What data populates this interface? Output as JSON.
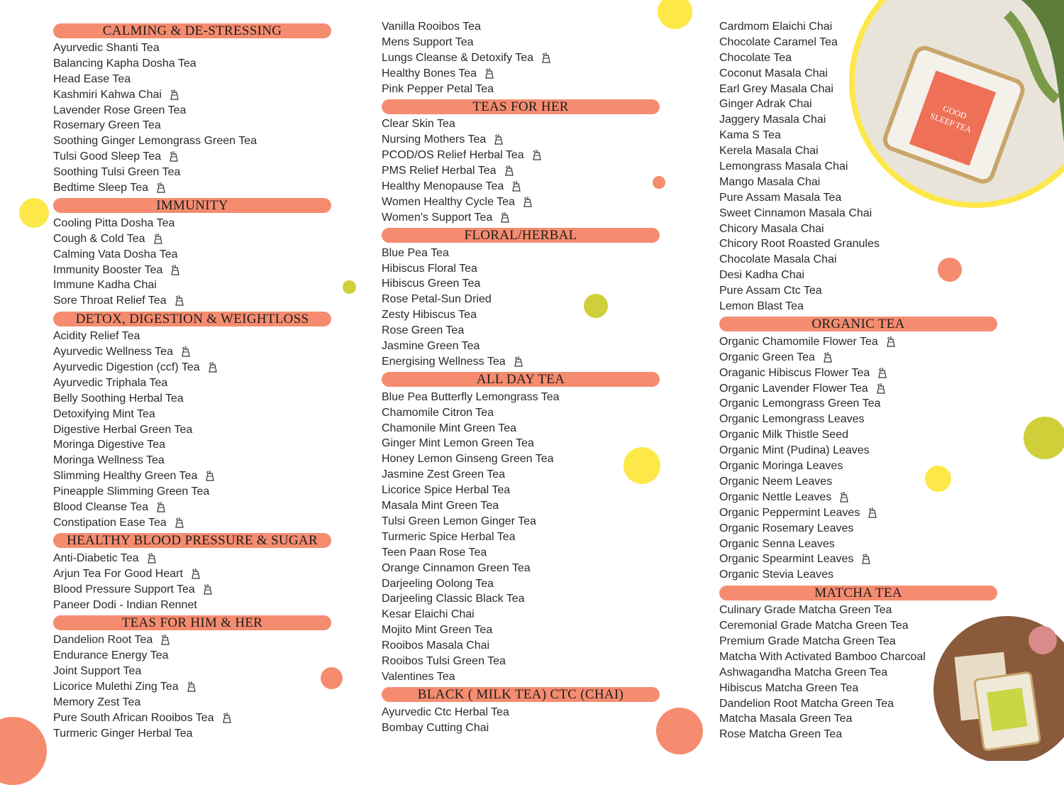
{
  "columns": [
    {
      "sections": [
        {
          "title": "CALMING & DE-STRESSING",
          "items": [
            {
              "text": "Ayurvedic Shanti Tea"
            },
            {
              "text": "Balancing Kapha Dosha Tea"
            },
            {
              "text": "Head Ease Tea"
            },
            {
              "text": "Kashmiri Kahwa Chai",
              "bag": true
            },
            {
              "text": "Lavender Rose Green Tea"
            },
            {
              "text": "Rosemary Green Tea"
            },
            {
              "text": "Soothing Ginger Lemongrass Green Tea"
            },
            {
              "text": "Tulsi Good Sleep Tea",
              "bag": true
            },
            {
              "text": "Soothing Tulsi Green Tea"
            },
            {
              "text": "Bedtime Sleep Tea",
              "bag": true
            }
          ]
        },
        {
          "title": "IMMUNITY",
          "items": [
            {
              "text": "Cooling Pitta Dosha Tea"
            },
            {
              "text": "Cough & Cold Tea",
              "bag": true
            },
            {
              "text": "Calming Vata Dosha Tea"
            },
            {
              "text": "Immunity Booster Tea",
              "bag": true
            },
            {
              "text": "Immune Kadha Chai"
            },
            {
              "text": "Sore Throat Relief Tea",
              "bag": true
            }
          ]
        },
        {
          "title": "DETOX, DIGESTION & WEIGHTLOSS",
          "items": [
            {
              "text": "Acidity Relief Tea"
            },
            {
              "text": "Ayurvedic Wellness Tea",
              "bag": true
            },
            {
              "text": "Ayurvedic Digestion (ccf) Tea",
              "bag": true
            },
            {
              "text": "Ayurvedic Triphala Tea"
            },
            {
              "text": "Belly Soothing Herbal Tea"
            },
            {
              "text": "Detoxifying Mint Tea"
            },
            {
              "text": "Digestive Herbal Green Tea"
            },
            {
              "text": "Moringa Digestive Tea"
            },
            {
              "text": "Moringa Wellness Tea"
            },
            {
              "text": "Slimming Healthy Green Tea",
              "bag": true
            },
            {
              "text": "Pineapple Slimming Green Tea"
            },
            {
              "text": "Blood Cleanse Tea",
              "bag": true
            },
            {
              "text": "Constipation Ease Tea",
              "bag": true
            }
          ]
        },
        {
          "title": "HEALTHY BLOOD PRESSURE & SUGAR",
          "items": [
            {
              "text": "Anti-Diabetic Tea",
              "bag": true
            },
            {
              "text": "Arjun Tea For Good Heart",
              "bag": true
            },
            {
              "text": "Blood Pressure Support Tea",
              "bag": true
            },
            {
              "text": "Paneer Dodi - Indian Rennet"
            }
          ]
        },
        {
          "title": "TEAS FOR HIM & HER",
          "items": [
            {
              "text": "Dandelion Root Tea",
              "bag": true
            },
            {
              "text": "Endurance Energy Tea"
            },
            {
              "text": "Joint Support Tea"
            },
            {
              "text": "Licorice Mulethi Zing Tea",
              "bag": true
            },
            {
              "text": "Memory Zest Tea"
            },
            {
              "text": "Pure South African Rooibos Tea",
              "bag": true
            },
            {
              "text": "Turmeric Ginger Herbal Tea"
            }
          ]
        }
      ]
    },
    {
      "sections": [
        {
          "items": [
            {
              "text": "Vanilla Rooibos Tea"
            },
            {
              "text": "Mens Support Tea"
            },
            {
              "text": "Lungs Cleanse & Detoxify Tea",
              "bag": true
            },
            {
              "text": "Healthy Bones Tea",
              "bag": true
            },
            {
              "text": "Pink Pepper Petal Tea"
            }
          ]
        },
        {
          "title": "TEAS FOR HER",
          "items": [
            {
              "text": "Clear Skin Tea"
            },
            {
              "text": "Nursing Mothers Tea",
              "bag": true
            },
            {
              "text": "PCOD/OS Relief Herbal Tea",
              "bag": true
            },
            {
              "text": "PMS Relief Herbal Tea",
              "bag": true
            },
            {
              "text": "Healthy Menopause Tea",
              "bag": true
            },
            {
              "text": "Women Healthy Cycle Tea",
              "bag": true
            },
            {
              "text": "Women's Support Tea",
              "bag": true
            }
          ]
        },
        {
          "title": "FLORAL/HERBAL",
          "items": [
            {
              "text": "Blue Pea Tea"
            },
            {
              "text": "Hibiscus Floral Tea"
            },
            {
              "text": "Hibiscus Green Tea"
            },
            {
              "text": "Rose Petal-Sun Dried"
            },
            {
              "text": "Zesty Hibiscus Tea"
            },
            {
              "text": "Rose Green Tea"
            },
            {
              "text": "Jasmine Green Tea"
            },
            {
              "text": "Energising Wellness Tea",
              "bag": true
            }
          ]
        },
        {
          "title": "ALL DAY TEA",
          "items": [
            {
              "text": "Blue Pea Butterfly Lemongrass Tea"
            },
            {
              "text": "Chamomile Citron Tea"
            },
            {
              "text": "Chamonile Mint Green Tea"
            },
            {
              "text": "Ginger Mint Lemon Green Tea"
            },
            {
              "text": "Honey Lemon Ginseng Green Tea"
            },
            {
              "text": "Jasmine Zest Green Tea"
            },
            {
              "text": "Licorice Spice Herbal Tea"
            },
            {
              "text": "Masala Mint Green Tea"
            },
            {
              "text": "Tulsi Green Lemon Ginger Tea"
            },
            {
              "text": "Turmeric Spice Herbal Tea"
            },
            {
              "text": "Teen Paan Rose Tea"
            },
            {
              "text": "Orange Cinnamon Green Tea"
            },
            {
              "text": "Darjeeling Oolong Tea"
            },
            {
              "text": "Darjeeling Classic Black Tea"
            },
            {
              "text": "Kesar Elaichi Chai"
            },
            {
              "text": "Mojito Mint Green Tea"
            },
            {
              "text": "Rooibos Masala Chai"
            },
            {
              "text": "Rooibos Tulsi Green Tea"
            },
            {
              "text": "Valentines Tea"
            }
          ]
        },
        {
          "title": "BLACK ( MILK TEA) CTC (CHAI)",
          "items": [
            {
              "text": "Ayurvedic Ctc Herbal Tea"
            },
            {
              "text": "Bombay Cutting Chai"
            }
          ]
        }
      ]
    },
    {
      "sections": [
        {
          "items": [
            {
              "text": "Cardmom Elaichi Chai"
            },
            {
              "text": "Chocolate Caramel Tea"
            },
            {
              "text": "Chocolate Tea"
            },
            {
              "text": "Coconut Masala Chai"
            },
            {
              "text": "Earl Grey Masala Chai"
            },
            {
              "text": "Ginger Adrak Chai"
            },
            {
              "text": "Jaggery Masala Chai"
            },
            {
              "text": "Kama S Tea"
            },
            {
              "text": "Kerela Masala Chai"
            },
            {
              "text": "Lemongrass Masala Chai"
            },
            {
              "text": "Mango Masala Chai"
            },
            {
              "text": "Pure Assam Masala Tea"
            },
            {
              "text": "Sweet Cinnamon Masala Chai"
            },
            {
              "text": "Chicory Masala Chai"
            },
            {
              "text": "Chicory Root Roasted Granules"
            },
            {
              "text": "Chocolate Masala Chai"
            },
            {
              "text": "Desi Kadha Chai"
            },
            {
              "text": "Pure Assam Ctc Tea"
            },
            {
              "text": "Lemon Blast Tea"
            }
          ]
        },
        {
          "title": "ORGANIC TEA",
          "items": [
            {
              "text": "Organic Chamomile Flower Tea",
              "bag": true
            },
            {
              "text": "Organic Green Tea",
              "bag": true
            },
            {
              "text": "Oraganic Hibiscus Flower Tea",
              "bag": true
            },
            {
              "text": "Organic Lavender Flower Tea",
              "bag": true
            },
            {
              "text": "Organic Lemongrass  Green Tea"
            },
            {
              "text": "Organic Lemongrass Leaves"
            },
            {
              "text": "Organic Milk Thistle Seed"
            },
            {
              "text": "Organic Mint (Pudina) Leaves"
            },
            {
              "text": "Organic Moringa Leaves"
            },
            {
              "text": "Organic Neem Leaves"
            },
            {
              "text": "Organic Nettle Leaves",
              "bag": true
            },
            {
              "text": "Organic Peppermint Leaves",
              "bag": true
            },
            {
              "text": "Organic Rosemary Leaves"
            },
            {
              "text": "Organic Senna Leaves"
            },
            {
              "text": "Organic Spearmint Leaves",
              "bag": true
            },
            {
              "text": "Organic Stevia Leaves"
            }
          ]
        },
        {
          "title": "MATCHA TEA",
          "items": [
            {
              "text": "Culinary Grade Matcha Green Tea"
            },
            {
              "text": "Ceremonial Grade Matcha Green Tea"
            },
            {
              "text": "Premium Grade Matcha Green Tea"
            },
            {
              "text": "Matcha With Activated Bamboo Charcoal"
            },
            {
              "text": "Ashwagandha Matcha Green Tea"
            },
            {
              "text": "Hibiscus Matcha Green Tea"
            },
            {
              "text": "Dandelion Root Matcha Green Tea"
            },
            {
              "text": "Matcha Masala Green Tea"
            },
            {
              "text": "Rose Matcha Green Tea"
            }
          ]
        }
      ]
    }
  ]
}
